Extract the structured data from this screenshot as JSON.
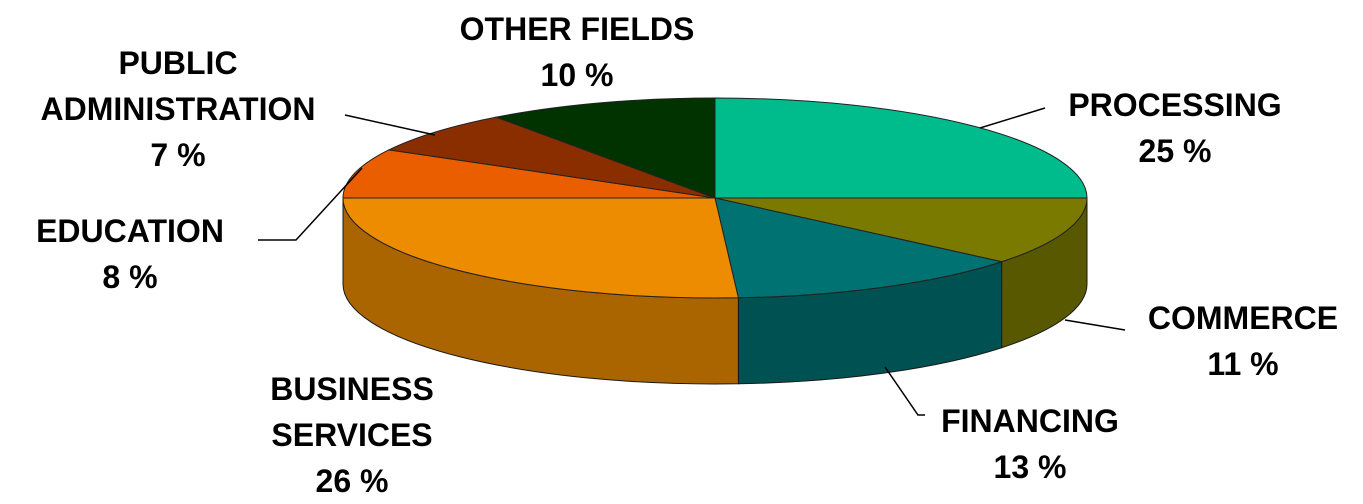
{
  "chart_data": {
    "type": "pie",
    "categories": [
      "PROCESSING",
      "COMMERCE",
      "FINANCING",
      "BUSINESS SERVICES",
      "EDUCATION",
      "PUBLIC ADMINISTRATION",
      "OTHER FIELDS"
    ],
    "values": [
      25,
      11,
      13,
      26,
      8,
      7,
      10
    ],
    "value_labels": [
      "25 %",
      "11 %",
      "13 %",
      "26 %",
      "8 %",
      "7 %",
      "10 %"
    ],
    "colors": [
      "#00bb8c",
      "#7a7a00",
      "#007272",
      "#ee8c00",
      "#ea5e00",
      "#8a2e00",
      "#003300"
    ]
  }
}
